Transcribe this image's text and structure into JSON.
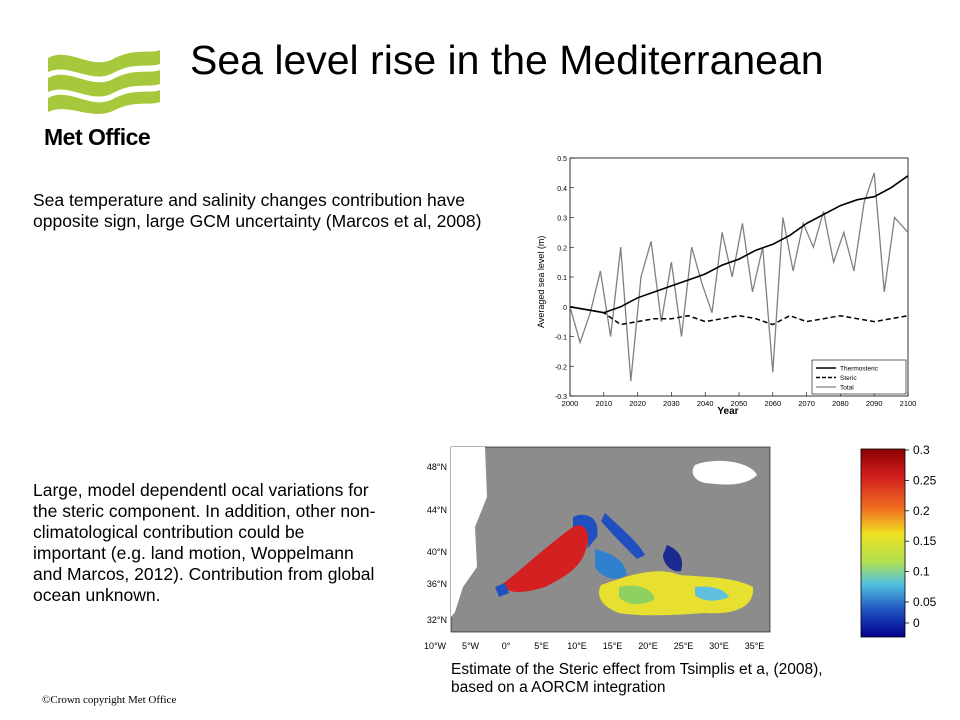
{
  "slide": {
    "title": "Sea level rise in the Mediterranean",
    "logo_text": "Met Office",
    "point1": "Sea temperature and salinity changes contribution have opposite sign, large GCM uncertainty (Marcos et al, 2008)",
    "point2": "Large, model dependentl ocal variations for the steric component. In addition, other non-climatological contribution could be important (e.g. land motion, Woppelmann and Marcos, 2012). Contribution from global ocean unknown.",
    "map_caption": "Estimate of the Steric effect from Tsimplis et a, (2008), based on a AORCM integration",
    "copyright": "©Crown copyright   Met Office"
  },
  "colors": {
    "logo_green": "#a6c83a",
    "thermosteric": "#000000",
    "steric": "#000000",
    "total": "#808080",
    "land": "#8c8c8c"
  },
  "chart_data": {
    "type": "line",
    "xlabel": "Year",
    "ylabel": "Averaged sea level (m)",
    "xlim": [
      2000,
      2100
    ],
    "ylim": [
      -0.3,
      0.5
    ],
    "x_ticks": [
      2000,
      2010,
      2020,
      2030,
      2040,
      2050,
      2060,
      2070,
      2080,
      2090,
      2100
    ],
    "y_ticks": [
      "0.5",
      "0.4",
      "0.3",
      "0.2",
      "0.1",
      "0",
      "-0.1",
      "-0.2",
      "-0.3"
    ],
    "legend_position": "bottom-right",
    "series": [
      {
        "name": "Thermosteric",
        "style": "solid",
        "x": [
          2000,
          2005,
          2010,
          2015,
          2020,
          2025,
          2030,
          2035,
          2040,
          2045,
          2050,
          2055,
          2060,
          2065,
          2070,
          2075,
          2080,
          2085,
          2090,
          2095,
          2100
        ],
        "y": [
          0.0,
          -0.01,
          -0.02,
          0.0,
          0.03,
          0.05,
          0.07,
          0.09,
          0.11,
          0.14,
          0.16,
          0.19,
          0.21,
          0.24,
          0.28,
          0.31,
          0.34,
          0.36,
          0.37,
          0.4,
          0.44
        ]
      },
      {
        "name": "Steric",
        "style": "dashed",
        "x": [
          2000,
          2005,
          2010,
          2015,
          2020,
          2025,
          2030,
          2035,
          2040,
          2045,
          2050,
          2055,
          2060,
          2065,
          2070,
          2075,
          2080,
          2085,
          2090,
          2095,
          2100
        ],
        "y": [
          0.0,
          -0.01,
          -0.02,
          -0.06,
          -0.05,
          -0.04,
          -0.04,
          -0.03,
          -0.05,
          -0.04,
          -0.03,
          -0.04,
          -0.06,
          -0.03,
          -0.05,
          -0.04,
          -0.03,
          -0.04,
          -0.05,
          -0.04,
          -0.03
        ]
      },
      {
        "name": "Total",
        "style": "solid",
        "x": [
          2000,
          2003,
          2006,
          2009,
          2012,
          2015,
          2018,
          2021,
          2024,
          2027,
          2030,
          2033,
          2036,
          2039,
          2042,
          2045,
          2048,
          2051,
          2054,
          2057,
          2060,
          2063,
          2066,
          2069,
          2072,
          2075,
          2078,
          2081,
          2084,
          2087,
          2090,
          2093,
          2096,
          2100
        ],
        "y": [
          0.0,
          -0.12,
          -0.02,
          0.12,
          -0.1,
          0.2,
          -0.25,
          0.1,
          0.22,
          -0.05,
          0.15,
          -0.1,
          0.2,
          0.08,
          -0.02,
          0.25,
          0.1,
          0.28,
          0.05,
          0.2,
          -0.22,
          0.3,
          0.12,
          0.28,
          0.2,
          0.32,
          0.15,
          0.25,
          0.12,
          0.35,
          0.45,
          0.05,
          0.3,
          0.25
        ]
      }
    ]
  },
  "map_data": {
    "lat_labels": [
      "48°N",
      "44°N",
      "40°N",
      "36°N",
      "32°N"
    ],
    "lon_labels": [
      "10°W",
      "5°W",
      "0°",
      "5°E",
      "10°E",
      "15°E",
      "20°E",
      "25°E",
      "30°E",
      "35°E"
    ]
  },
  "colorbar": {
    "ticks": [
      "0.3",
      "0.25",
      "0.2",
      "0.15",
      "0.1",
      "0.05",
      "0"
    ],
    "colors": [
      "#8b0000",
      "#d42020",
      "#f07020",
      "#f0e020",
      "#b0e050",
      "#50c0e0",
      "#2050c0",
      "#00008b"
    ]
  }
}
